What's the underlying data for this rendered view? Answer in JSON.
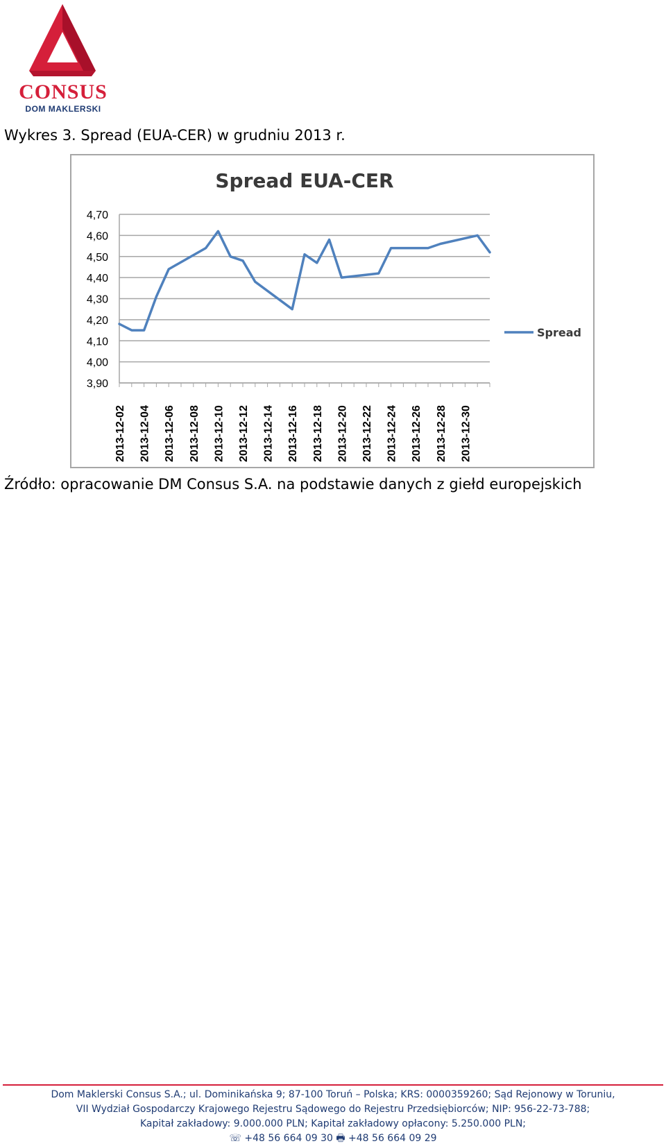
{
  "logo": {
    "name": "CONSUS",
    "subtitle": "DOM MAKLERSKI",
    "colors": {
      "red": "#d51f3a",
      "navy": "#1f3b73"
    }
  },
  "caption": "Wykres 3. Spread (EUA-CER) w grudniu 2013 r.",
  "chart_data": {
    "type": "line",
    "title": "Spread EUA-CER",
    "x": [
      "2013-12-02",
      "2013-12-03",
      "2013-12-04",
      "2013-12-05",
      "2013-12-06",
      "2013-12-09",
      "2013-12-10",
      "2013-12-11",
      "2013-12-12",
      "2013-12-13",
      "2013-12-16",
      "2013-12-17",
      "2013-12-18",
      "2013-12-19",
      "2013-12-20",
      "2013-12-23",
      "2013-12-24",
      "2013-12-27",
      "2013-12-28",
      "2013-12-31",
      "2014-01-01"
    ],
    "x_ticks": [
      "2013-12-02",
      "2013-12-04",
      "2013-12-06",
      "2013-12-08",
      "2013-12-10",
      "2013-12-12",
      "2013-12-14",
      "2013-12-16",
      "2013-12-18",
      "2013-12-20",
      "2013-12-22",
      "2013-12-24",
      "2013-12-26",
      "2013-12-28",
      "2013-12-30"
    ],
    "series": [
      {
        "name": "Spread",
        "color": "#4f81bd",
        "values": [
          4.18,
          4.15,
          4.15,
          4.31,
          4.44,
          4.54,
          4.62,
          4.5,
          4.48,
          4.38,
          4.25,
          4.51,
          4.47,
          4.58,
          4.4,
          4.42,
          4.54,
          4.54,
          4.56,
          4.6,
          4.52
        ]
      }
    ],
    "y_ticks": [
      "3,90",
      "4,00",
      "4,10",
      "4,20",
      "4,30",
      "4,40",
      "4,50",
      "4,60",
      "4,70"
    ],
    "ylim": [
      3.9,
      4.7
    ],
    "grid": true,
    "legend": "right"
  },
  "source": "Źródło: opracowanie DM Consus S.A. na podstawie danych z giełd europejskich",
  "footer": {
    "line1": "Dom Maklerski Consus S.A.; ul. Dominikańska 9; 87-100 Toruń – Polska; KRS: 0000359260; Sąd Rejonowy w Toruniu,",
    "line2": "VII Wydział Gospodarczy Krajowego Rejestru Sądowego do Rejestru Przedsiębiorców; NIP: 956-22-73-788;",
    "line3": "Kapitał zakładowy: 9.000.000 PLN; Kapitał zakładowy opłacony: 5.250.000 PLN;",
    "phone": "+48 56 664 09 30",
    "fax": "+48 56 664 09 29",
    "phone_icon": "phone-icon",
    "fax_icon": "fax-icon"
  }
}
